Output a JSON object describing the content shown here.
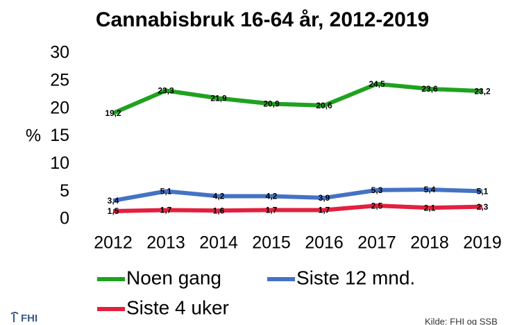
{
  "chart_data": {
    "type": "line",
    "title": "Cannabisbruk 16-64 år, 2012-2019",
    "y_label": "%",
    "categories": [
      "2012",
      "2013",
      "2014",
      "2015",
      "2016",
      "2017",
      "2018",
      "2019"
    ],
    "series": [
      {
        "name": "Noen gang",
        "color": "#1fa21f",
        "values": [
          19.2,
          23.3,
          21.9,
          20.9,
          20.6,
          24.5,
          23.6,
          23.2
        ],
        "value_labels": [
          "19,2",
          "23,3",
          "21,9",
          "20,9",
          "20,6",
          "24,5",
          "23,6",
          "23,2"
        ]
      },
      {
        "name": "Siste 12 mnd.",
        "color": "#4472c4",
        "values": [
          3.4,
          5.1,
          4.2,
          4.2,
          3.9,
          5.3,
          5.4,
          5.1
        ],
        "value_labels": [
          "3,4",
          "5,1",
          "4,2",
          "4,2",
          "3,9",
          "5,3",
          "5,4",
          "5,1"
        ]
      },
      {
        "name": "Siste 4 uker",
        "color": "#e3203f",
        "values": [
          1.5,
          1.7,
          1.6,
          1.7,
          1.7,
          2.5,
          2.1,
          2.3
        ],
        "value_labels": [
          "1,5",
          "1,7",
          "1,6",
          "1,7",
          "1,7",
          "2,5",
          "2,1",
          "2,3"
        ]
      }
    ],
    "ylim": [
      0,
      30
    ],
    "yticks": [
      0,
      5,
      10,
      15,
      20,
      25,
      30
    ],
    "grid": false,
    "logo": "FHI",
    "source": "Kilde: FHI og SSB"
  }
}
